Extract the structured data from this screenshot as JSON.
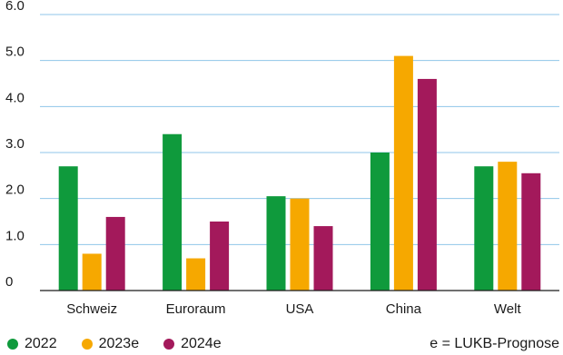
{
  "chart_data": {
    "type": "bar",
    "categories": [
      "Schweiz",
      "Euroraum",
      "USA",
      "China",
      "Welt"
    ],
    "series": [
      {
        "name": "2022",
        "color": "#0f9a3c",
        "values": [
          2.7,
          3.4,
          2.05,
          3.0,
          2.7
        ]
      },
      {
        "name": "2023e",
        "color": "#f6a800",
        "values": [
          0.8,
          0.7,
          2.0,
          5.1,
          2.8
        ]
      },
      {
        "name": "2024e",
        "color": "#a3195b",
        "values": [
          1.6,
          1.5,
          1.4,
          4.6,
          2.55
        ]
      }
    ],
    "ylim": [
      0,
      6
    ],
    "yticks": [
      "0",
      "1.0",
      "2.0",
      "3.0",
      "4.0",
      "5.0",
      "6.0"
    ],
    "grid": true,
    "gridline_color": "#8fc6e8",
    "legend_position": "bottom-left"
  },
  "note": "e = LUKB-Prognose"
}
